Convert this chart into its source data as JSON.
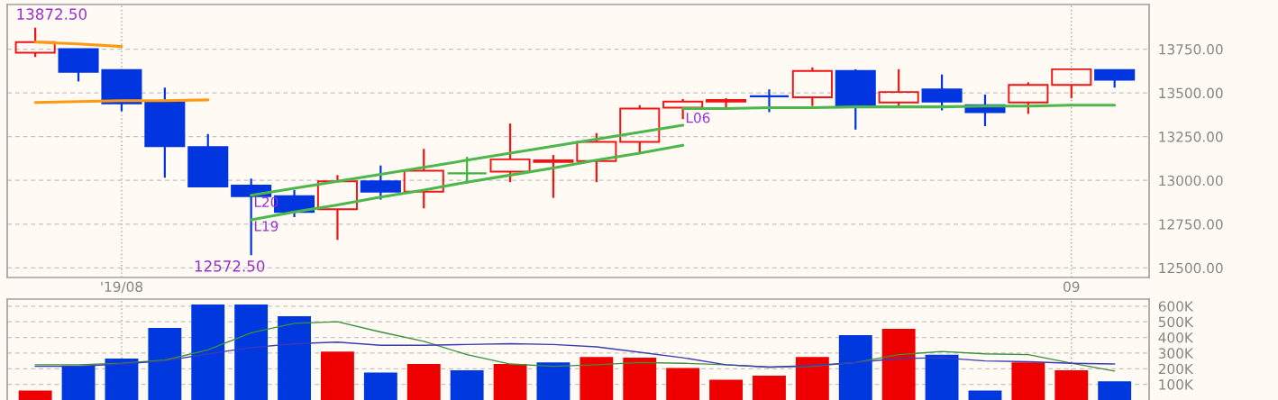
{
  "chart_data": [
    {
      "type": "candlestick",
      "categories": [
        null,
        null,
        "'19/08",
        null,
        null,
        null,
        null,
        null,
        null,
        null,
        null,
        null,
        null,
        null,
        null,
        null,
        null,
        null,
        null,
        null,
        null,
        null,
        null,
        null,
        "09",
        null
      ],
      "ohlc": [
        [
          13730,
          13872.5,
          13705,
          13790
        ],
        [
          13750,
          13750,
          13565,
          13620
        ],
        [
          13630,
          13635,
          13395,
          13440
        ],
        [
          13450,
          13530,
          13015,
          13195
        ],
        [
          13190,
          13265,
          12965,
          12965
        ],
        [
          12970,
          13010,
          12572.5,
          12910
        ],
        [
          12910,
          12945,
          12790,
          12820
        ],
        [
          12835,
          13030,
          12660,
          12995
        ],
        [
          12995,
          13085,
          12890,
          12935
        ],
        [
          12935,
          13180,
          12840,
          13055
        ],
        [
          13040,
          13135,
          12980,
          13040
        ],
        [
          13050,
          13325,
          12990,
          13120
        ],
        [
          13105,
          13145,
          12900,
          13115
        ],
        [
          13110,
          13270,
          12990,
          13220
        ],
        [
          13220,
          13430,
          13160,
          13410
        ],
        [
          13415,
          13465,
          13350,
          13450
        ],
        [
          13450,
          13470,
          13405,
          13460
        ],
        [
          13480,
          13520,
          13390,
          13480
        ],
        [
          13475,
          13645,
          13425,
          13625
        ],
        [
          13625,
          13635,
          13290,
          13425
        ],
        [
          13445,
          13635,
          13425,
          13505
        ],
        [
          13520,
          13605,
          13400,
          13450
        ],
        [
          13430,
          13490,
          13310,
          13390
        ],
        [
          13445,
          13560,
          13380,
          13545
        ],
        [
          13545,
          13635,
          13470,
          13635
        ],
        [
          13630,
          13630,
          13530,
          13575
        ]
      ],
      "colors": [
        "#f01414",
        "#0035e0",
        "#0035e0",
        "#0035e0",
        "#0035e0",
        "#0035e0",
        "#0035e0",
        "#f01414",
        "#0035e0",
        "#f01414",
        "#3cb43c",
        "#f01414",
        "#f01414",
        "#f01414",
        "#f01414",
        "#f01414",
        "#f01414",
        "#0035e0",
        "#f01414",
        "#0035e0",
        "#f01414",
        "#0035e0",
        "#0035e0",
        "#f01414",
        "#f01414",
        "#0035e0"
      ],
      "series": [
        {
          "type": "line",
          "color": "#ff9a10",
          "values": [
            13790,
            13780,
            13765,
            null,
            null,
            null,
            null,
            null,
            null,
            null,
            null,
            null,
            null,
            null,
            null,
            null,
            null,
            null,
            null,
            null,
            null,
            null,
            null,
            null,
            null,
            null
          ]
        },
        {
          "type": "line",
          "color": "#ff9a10",
          "values": [
            13445,
            13450,
            13455,
            13455,
            13460,
            null,
            null,
            null,
            null,
            null,
            null,
            null,
            null,
            null,
            null,
            null,
            null,
            null,
            null,
            null,
            null,
            null,
            null,
            null,
            null,
            null
          ]
        },
        {
          "type": "line",
          "name": "L20",
          "color": "#4cb84c",
          "values": [
            null,
            null,
            null,
            null,
            null,
            12915,
            12955,
            12995,
            13035,
            13075,
            13115,
            13155,
            13195,
            13235,
            13275,
            13315,
            null,
            null,
            null,
            null,
            null,
            null,
            null,
            null,
            null,
            null
          ]
        },
        {
          "type": "line",
          "name": "L19",
          "color": "#4cb84c",
          "values": [
            null,
            null,
            null,
            null,
            null,
            12775,
            12820,
            12860,
            12905,
            12945,
            12990,
            13030,
            13070,
            13115,
            13155,
            13200,
            null,
            null,
            null,
            null,
            null,
            null,
            null,
            null,
            null,
            null
          ]
        },
        {
          "type": "line",
          "name": "L06",
          "color": "#4cb84c",
          "values": [
            null,
            null,
            null,
            null,
            null,
            null,
            null,
            null,
            null,
            null,
            null,
            null,
            null,
            null,
            null,
            13410,
            13410,
            13415,
            13415,
            13420,
            13420,
            13420,
            13425,
            13425,
            13430,
            13430
          ]
        }
      ],
      "ylim": [
        12445,
        14005
      ],
      "yticks": [
        {
          "value": 12500,
          "label": "12500.00"
        },
        {
          "value": 12750,
          "label": "12750.00"
        },
        {
          "value": 13000,
          "label": "13000.00"
        },
        {
          "value": 13250,
          "label": "13250.00"
        },
        {
          "value": 13500,
          "label": "13500.00"
        },
        {
          "value": 13750,
          "label": "13750.00"
        }
      ],
      "grid": true,
      "annotations": [
        "13872.50",
        "12572.50"
      ]
    },
    {
      "type": "bar",
      "categories": [
        null,
        null,
        null,
        null,
        null,
        null,
        null,
        null,
        null,
        null,
        null,
        null,
        null,
        null,
        null,
        null,
        null,
        null,
        null,
        null,
        null,
        null,
        null,
        null,
        null,
        null
      ],
      "series": [
        {
          "type": "bar",
          "colors": [
            "#ee0000",
            "#0038e0",
            "#0038e0",
            "#0038e0",
            "#0038e0",
            "#0038e0",
            "#0038e0",
            "#ee0000",
            "#0038e0",
            "#ee0000",
            "#0038e0",
            "#ee0000",
            "#0038e0",
            "#ee0000",
            "#ee0000",
            "#ee0000",
            "#ee0000",
            "#ee0000",
            "#ee0000",
            "#0038e0",
            "#ee0000",
            "#0038e0",
            "#0038e0",
            "#ee0000",
            "#ee0000",
            "#0038e0"
          ],
          "values": [
            60000,
            220000,
            265000,
            460000,
            610000,
            610000,
            535000,
            310000,
            175000,
            230000,
            190000,
            230000,
            240000,
            275000,
            270000,
            205000,
            130000,
            155000,
            275000,
            415000,
            455000,
            290000,
            60000,
            240000,
            190000,
            120000
          ]
        },
        {
          "type": "line",
          "color": "#3d8f3d",
          "values": [
            225000,
            225000,
            235000,
            255000,
            320000,
            430000,
            490000,
            500000,
            435000,
            375000,
            290000,
            230000,
            215000,
            225000,
            240000,
            235000,
            225000,
            210000,
            215000,
            240000,
            290000,
            310000,
            295000,
            290000,
            235000,
            185000
          ]
        },
        {
          "type": "line",
          "color": "#3c3cb4",
          "values": [
            215000,
            215000,
            230000,
            250000,
            295000,
            335000,
            360000,
            370000,
            350000,
            350000,
            355000,
            360000,
            355000,
            340000,
            305000,
            270000,
            225000,
            210000,
            220000,
            240000,
            265000,
            270000,
            250000,
            245000,
            235000,
            230000
          ]
        }
      ],
      "ylim": [
        0,
        645000
      ],
      "yticks": [
        {
          "value": 100000,
          "label": "100K"
        },
        {
          "value": 200000,
          "label": "200K"
        },
        {
          "value": 300000,
          "label": "300K"
        },
        {
          "value": 400000,
          "label": "400K"
        },
        {
          "value": 500000,
          "label": "500K"
        },
        {
          "value": 600000,
          "label": "600K"
        }
      ],
      "grid": true,
      "tick_labels": "y"
    }
  ]
}
